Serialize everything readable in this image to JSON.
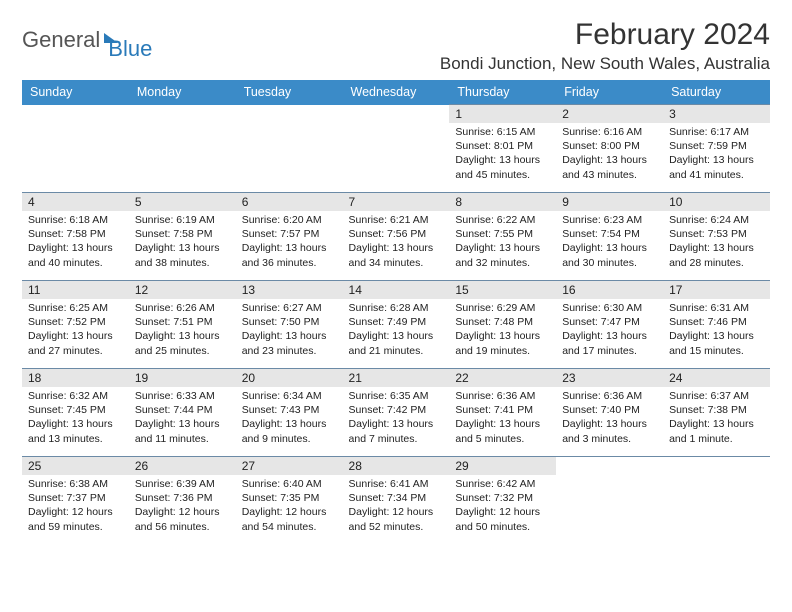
{
  "logo": {
    "text1": "General",
    "text2": "Blue"
  },
  "title": "February 2024",
  "location": "Bondi Junction, New South Wales, Australia",
  "colors": {
    "header_bg": "#3b8bc8",
    "header_text": "#ffffff",
    "daynum_bg": "#e6e6e6",
    "cell_border": "#6b8aa6",
    "text": "#222222",
    "logo_gray": "#555555",
    "logo_blue": "#2a7ab9"
  },
  "typography": {
    "title_fontsize": 30,
    "location_fontsize": 17,
    "dayheader_fontsize": 12.5,
    "daynum_fontsize": 12,
    "body_fontsize": 10.5
  },
  "calendar": {
    "type": "table",
    "day_headers": [
      "Sunday",
      "Monday",
      "Tuesday",
      "Wednesday",
      "Thursday",
      "Friday",
      "Saturday"
    ],
    "weeks": [
      [
        null,
        null,
        null,
        null,
        {
          "day": "1",
          "sunrise": "Sunrise: 6:15 AM",
          "sunset": "Sunset: 8:01 PM",
          "daylight": "Daylight: 13 hours and 45 minutes."
        },
        {
          "day": "2",
          "sunrise": "Sunrise: 6:16 AM",
          "sunset": "Sunset: 8:00 PM",
          "daylight": "Daylight: 13 hours and 43 minutes."
        },
        {
          "day": "3",
          "sunrise": "Sunrise: 6:17 AM",
          "sunset": "Sunset: 7:59 PM",
          "daylight": "Daylight: 13 hours and 41 minutes."
        }
      ],
      [
        {
          "day": "4",
          "sunrise": "Sunrise: 6:18 AM",
          "sunset": "Sunset: 7:58 PM",
          "daylight": "Daylight: 13 hours and 40 minutes."
        },
        {
          "day": "5",
          "sunrise": "Sunrise: 6:19 AM",
          "sunset": "Sunset: 7:58 PM",
          "daylight": "Daylight: 13 hours and 38 minutes."
        },
        {
          "day": "6",
          "sunrise": "Sunrise: 6:20 AM",
          "sunset": "Sunset: 7:57 PM",
          "daylight": "Daylight: 13 hours and 36 minutes."
        },
        {
          "day": "7",
          "sunrise": "Sunrise: 6:21 AM",
          "sunset": "Sunset: 7:56 PM",
          "daylight": "Daylight: 13 hours and 34 minutes."
        },
        {
          "day": "8",
          "sunrise": "Sunrise: 6:22 AM",
          "sunset": "Sunset: 7:55 PM",
          "daylight": "Daylight: 13 hours and 32 minutes."
        },
        {
          "day": "9",
          "sunrise": "Sunrise: 6:23 AM",
          "sunset": "Sunset: 7:54 PM",
          "daylight": "Daylight: 13 hours and 30 minutes."
        },
        {
          "day": "10",
          "sunrise": "Sunrise: 6:24 AM",
          "sunset": "Sunset: 7:53 PM",
          "daylight": "Daylight: 13 hours and 28 minutes."
        }
      ],
      [
        {
          "day": "11",
          "sunrise": "Sunrise: 6:25 AM",
          "sunset": "Sunset: 7:52 PM",
          "daylight": "Daylight: 13 hours and 27 minutes."
        },
        {
          "day": "12",
          "sunrise": "Sunrise: 6:26 AM",
          "sunset": "Sunset: 7:51 PM",
          "daylight": "Daylight: 13 hours and 25 minutes."
        },
        {
          "day": "13",
          "sunrise": "Sunrise: 6:27 AM",
          "sunset": "Sunset: 7:50 PM",
          "daylight": "Daylight: 13 hours and 23 minutes."
        },
        {
          "day": "14",
          "sunrise": "Sunrise: 6:28 AM",
          "sunset": "Sunset: 7:49 PM",
          "daylight": "Daylight: 13 hours and 21 minutes."
        },
        {
          "day": "15",
          "sunrise": "Sunrise: 6:29 AM",
          "sunset": "Sunset: 7:48 PM",
          "daylight": "Daylight: 13 hours and 19 minutes."
        },
        {
          "day": "16",
          "sunrise": "Sunrise: 6:30 AM",
          "sunset": "Sunset: 7:47 PM",
          "daylight": "Daylight: 13 hours and 17 minutes."
        },
        {
          "day": "17",
          "sunrise": "Sunrise: 6:31 AM",
          "sunset": "Sunset: 7:46 PM",
          "daylight": "Daylight: 13 hours and 15 minutes."
        }
      ],
      [
        {
          "day": "18",
          "sunrise": "Sunrise: 6:32 AM",
          "sunset": "Sunset: 7:45 PM",
          "daylight": "Daylight: 13 hours and 13 minutes."
        },
        {
          "day": "19",
          "sunrise": "Sunrise: 6:33 AM",
          "sunset": "Sunset: 7:44 PM",
          "daylight": "Daylight: 13 hours and 11 minutes."
        },
        {
          "day": "20",
          "sunrise": "Sunrise: 6:34 AM",
          "sunset": "Sunset: 7:43 PM",
          "daylight": "Daylight: 13 hours and 9 minutes."
        },
        {
          "day": "21",
          "sunrise": "Sunrise: 6:35 AM",
          "sunset": "Sunset: 7:42 PM",
          "daylight": "Daylight: 13 hours and 7 minutes."
        },
        {
          "day": "22",
          "sunrise": "Sunrise: 6:36 AM",
          "sunset": "Sunset: 7:41 PM",
          "daylight": "Daylight: 13 hours and 5 minutes."
        },
        {
          "day": "23",
          "sunrise": "Sunrise: 6:36 AM",
          "sunset": "Sunset: 7:40 PM",
          "daylight": "Daylight: 13 hours and 3 minutes."
        },
        {
          "day": "24",
          "sunrise": "Sunrise: 6:37 AM",
          "sunset": "Sunset: 7:38 PM",
          "daylight": "Daylight: 13 hours and 1 minute."
        }
      ],
      [
        {
          "day": "25",
          "sunrise": "Sunrise: 6:38 AM",
          "sunset": "Sunset: 7:37 PM",
          "daylight": "Daylight: 12 hours and 59 minutes."
        },
        {
          "day": "26",
          "sunrise": "Sunrise: 6:39 AM",
          "sunset": "Sunset: 7:36 PM",
          "daylight": "Daylight: 12 hours and 56 minutes."
        },
        {
          "day": "27",
          "sunrise": "Sunrise: 6:40 AM",
          "sunset": "Sunset: 7:35 PM",
          "daylight": "Daylight: 12 hours and 54 minutes."
        },
        {
          "day": "28",
          "sunrise": "Sunrise: 6:41 AM",
          "sunset": "Sunset: 7:34 PM",
          "daylight": "Daylight: 12 hours and 52 minutes."
        },
        {
          "day": "29",
          "sunrise": "Sunrise: 6:42 AM",
          "sunset": "Sunset: 7:32 PM",
          "daylight": "Daylight: 12 hours and 50 minutes."
        },
        null,
        null
      ]
    ]
  }
}
